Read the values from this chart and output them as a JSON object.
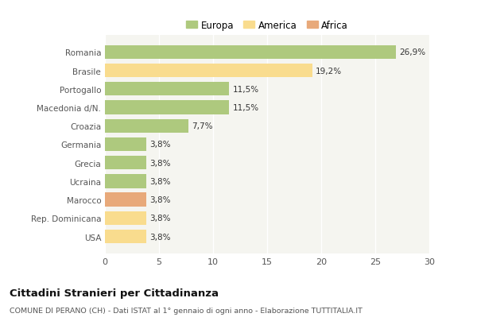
{
  "categories": [
    "Romania",
    "Brasile",
    "Portogallo",
    "Macedonia d/N.",
    "Croazia",
    "Germania",
    "Grecia",
    "Ucraina",
    "Marocco",
    "Rep. Dominicana",
    "USA"
  ],
  "values": [
    26.9,
    19.2,
    11.5,
    11.5,
    7.7,
    3.8,
    3.8,
    3.8,
    3.8,
    3.8,
    3.8
  ],
  "labels": [
    "26,9%",
    "19,2%",
    "11,5%",
    "11,5%",
    "7,7%",
    "3,8%",
    "3,8%",
    "3,8%",
    "3,8%",
    "3,8%",
    "3,8%"
  ],
  "continents": [
    "Europa",
    "America",
    "Europa",
    "Europa",
    "Europa",
    "Europa",
    "Europa",
    "Europa",
    "Africa",
    "America",
    "America"
  ],
  "colors": {
    "Europa": "#aec97e",
    "America": "#f9dc8e",
    "Africa": "#e8a97a"
  },
  "legend_labels": [
    "Europa",
    "America",
    "Africa"
  ],
  "legend_colors": [
    "#aec97e",
    "#f9dc8e",
    "#e8a97a"
  ],
  "xlim": [
    0,
    30
  ],
  "xticks": [
    0,
    5,
    10,
    15,
    20,
    25,
    30
  ],
  "title": "Cittadini Stranieri per Cittadinanza",
  "subtitle": "COMUNE DI PERANO (CH) - Dati ISTAT al 1° gennaio di ogni anno - Elaborazione TUTTITALIA.IT",
  "background_color": "#ffffff",
  "plot_bg_color": "#f5f5f0",
  "grid_color": "#ffffff",
  "bar_height": 0.75
}
